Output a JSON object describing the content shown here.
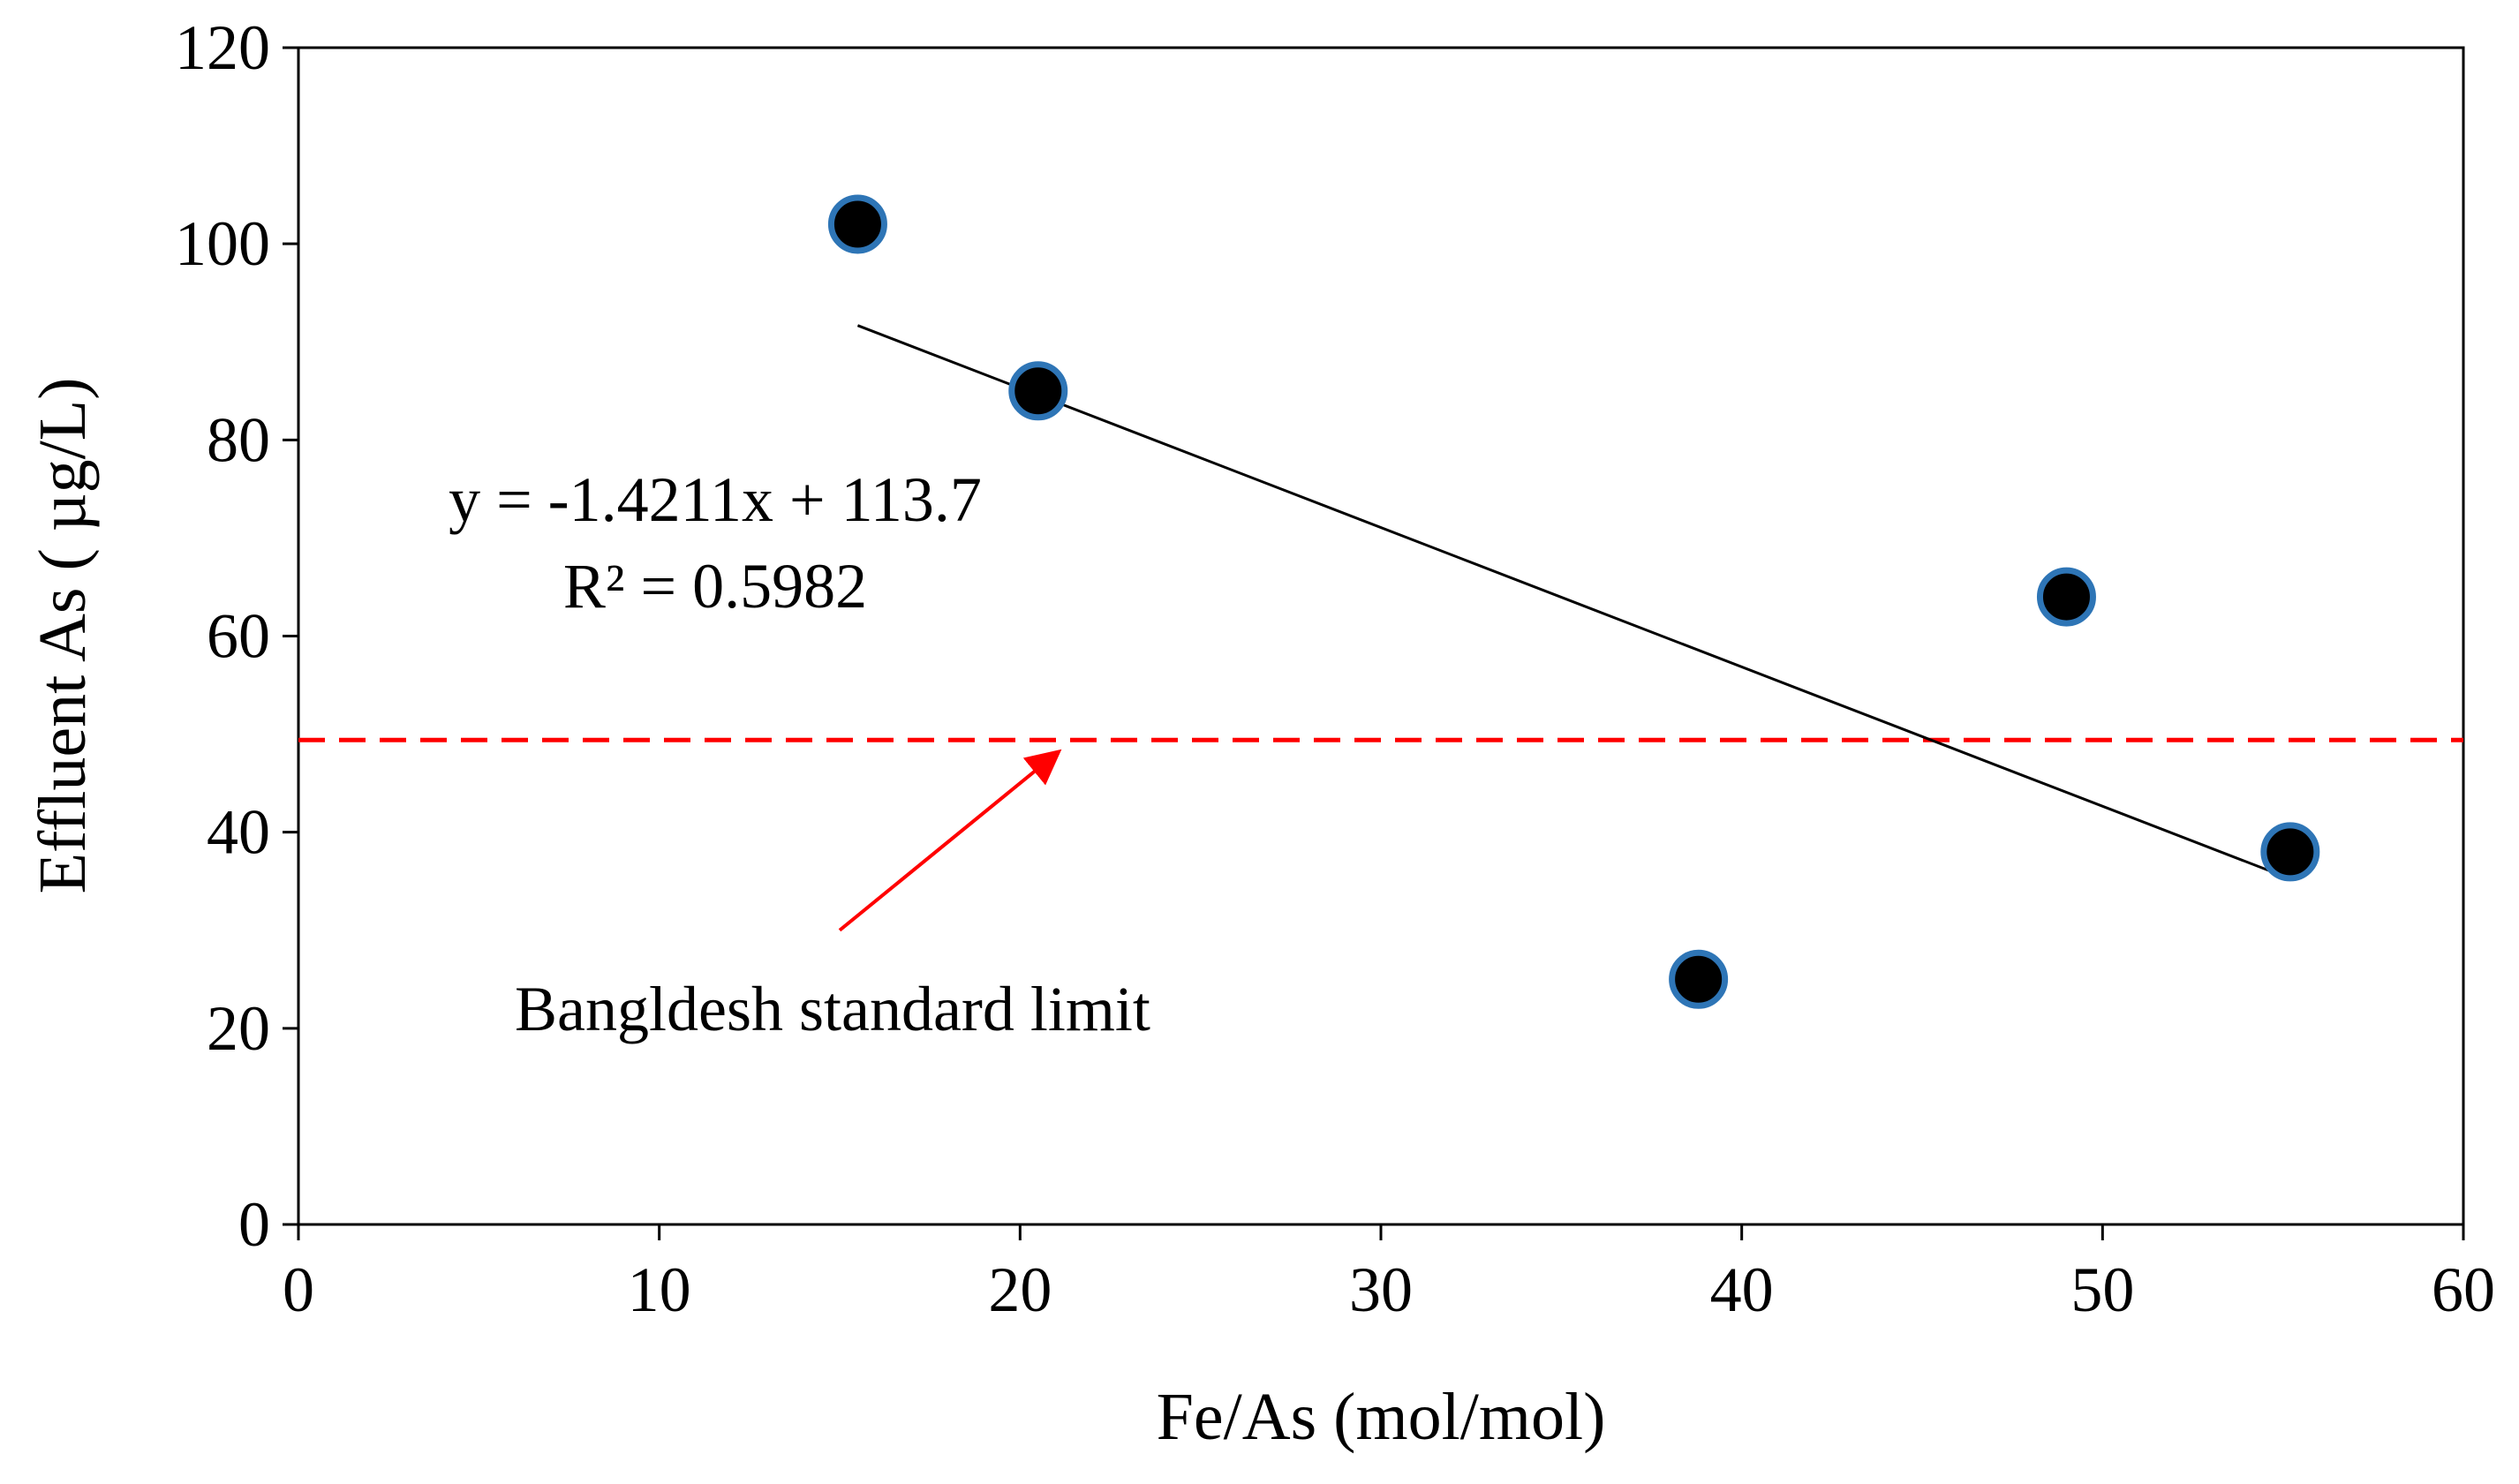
{
  "chart_data": {
    "type": "scatter",
    "title": "",
    "xlabel": "Fe/As (mol/mol)",
    "ylabel": "Effluent As ( µg/L)",
    "xlim": [
      0,
      60
    ],
    "ylim": [
      0,
      120
    ],
    "x_ticks": [
      0,
      10,
      20,
      30,
      40,
      50,
      60
    ],
    "y_ticks": [
      0,
      20,
      40,
      60,
      80,
      100,
      120
    ],
    "grid": false,
    "series": [
      {
        "name": "Effluent As",
        "x": [
          15.5,
          20.5,
          38.8,
          49.0,
          55.2
        ],
        "y": [
          102,
          85,
          25,
          64,
          38
        ]
      }
    ],
    "trendline": {
      "type": "linear",
      "slope": -1.4211,
      "intercept": 113.7,
      "x_range": [
        15.5,
        55.2
      ],
      "equation_label": "y = -1.4211x + 113.7",
      "r2_label": "R² = 0.5982"
    },
    "reference_line": {
      "y": 49.4,
      "label": "Bangldesh standard limit",
      "color": "#ff0000",
      "arrow_from": [
        15,
        30
      ],
      "arrow_to": [
        21,
        48
      ]
    },
    "colors": {
      "marker_fill": "#000000",
      "marker_edge": "#2e75b6",
      "trendline": "#000000",
      "reference": "#ff0000"
    }
  }
}
